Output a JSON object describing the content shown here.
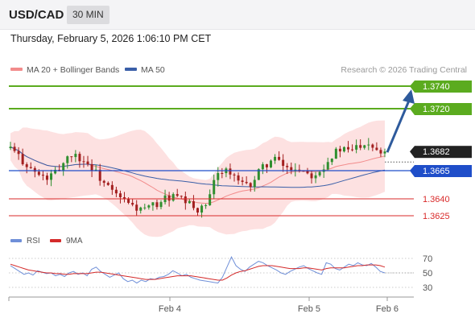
{
  "header": {
    "symbol": "USD/CAD",
    "timeframe": "30 MIN",
    "datetime": "Thursday, February 5, 2026 1:06:10 PM CET"
  },
  "legend": {
    "ma20_label": "MA 20 + Bollinger Bands",
    "ma50_label": "MA 50",
    "credit": "Research © 2026 Trading Central"
  },
  "colors": {
    "green": "#5bab1f",
    "blue": "#1f4ec9",
    "red": "#d92a2a",
    "arrow": "#2e5a9c",
    "band": "#fde1e1",
    "ma20": "#f28b8b",
    "ma50": "#3a5fa8",
    "bull": "#2f8f2f",
    "bear": "#a32020",
    "rsi": "#6f8fd8",
    "rsi_ma": "#d42a2a"
  },
  "chart_data": [
    {
      "type": "candlestick",
      "y_range": [
        1.3615,
        1.3755
      ],
      "x_labels": [
        "Feb 4",
        "Feb 5",
        "Feb 6"
      ],
      "levels": [
        {
          "label": "1.3740",
          "value": 1.374,
          "kind": "resistance"
        },
        {
          "label": "1.3720",
          "value": 1.372,
          "kind": "resistance"
        },
        {
          "label": "1.3682",
          "value": 1.3682,
          "kind": "last-price"
        },
        {
          "label": "1.3665",
          "value": 1.3665,
          "kind": "pivot"
        },
        {
          "label": "1.3640",
          "value": 1.364,
          "kind": "support"
        },
        {
          "label": "1.3625",
          "value": 1.3625,
          "kind": "support"
        }
      ],
      "series": [
        {
          "name": "MA 20 + Bollinger Bands",
          "type": "line-with-bands"
        },
        {
          "name": "MA 50",
          "type": "line"
        }
      ],
      "close_path": [
        1.3685,
        1.3678,
        1.3672,
        1.3665,
        1.366,
        1.3658,
        1.3662,
        1.367,
        1.368,
        1.3678,
        1.3674,
        1.3668,
        1.366,
        1.3652,
        1.3645,
        1.364,
        1.3636,
        1.3632,
        1.363,
        1.3632,
        1.3636,
        1.364,
        1.3642,
        1.364,
        1.3636,
        1.3632,
        1.363,
        1.3638,
        1.366,
        1.3668,
        1.3662,
        1.3655,
        1.365,
        1.3655,
        1.3665,
        1.3672,
        1.3675,
        1.367,
        1.3666,
        1.3668,
        1.3665,
        1.3662,
        1.3665,
        1.3672,
        1.368,
        1.3684,
        1.3682,
        1.3686,
        1.369,
        1.369,
        1.3684,
        1.3682
      ],
      "forecast_target": 1.374
    },
    {
      "type": "line",
      "legend": [
        "RSI",
        "9MA"
      ],
      "y_ticks": [
        70,
        50,
        30
      ],
      "y_range": [
        15,
        85
      ],
      "rsi": [
        60,
        56,
        52,
        48,
        50,
        47,
        53,
        51,
        49,
        50,
        46,
        48,
        45,
        50,
        52,
        48,
        50,
        46,
        55,
        58,
        52,
        48,
        44,
        47,
        50,
        42,
        38,
        40,
        36,
        40,
        38,
        42,
        41,
        44,
        45,
        48,
        53,
        50,
        46,
        48,
        44,
        42,
        40,
        39,
        38,
        37,
        36,
        44,
        58,
        72,
        60,
        55,
        52,
        58,
        62,
        66,
        64,
        60,
        57,
        54,
        50,
        48,
        52,
        55,
        58,
        60,
        56,
        53,
        50,
        48,
        64,
        62,
        56,
        54,
        58,
        62,
        60,
        64,
        61,
        60,
        63,
        58,
        52,
        50
      ],
      "rsi_ma": [
        62,
        60,
        58,
        56,
        54,
        53,
        52,
        51,
        50,
        50,
        49,
        49,
        48,
        48,
        49,
        49,
        49,
        49,
        50,
        51,
        51,
        50,
        49,
        48,
        47,
        46,
        45,
        44,
        43,
        42,
        41,
        41,
        41,
        42,
        43,
        44,
        45,
        46,
        46,
        46,
        46,
        45,
        44,
        43,
        42,
        41,
        40,
        40,
        43,
        47,
        50,
        52,
        53,
        55,
        57,
        59,
        60,
        60,
        60,
        59,
        58,
        57,
        56,
        56,
        56,
        57,
        57,
        56,
        55,
        54,
        56,
        57,
        57,
        57,
        57,
        58,
        59,
        60,
        60,
        61,
        61,
        61,
        60,
        58
      ]
    }
  ]
}
